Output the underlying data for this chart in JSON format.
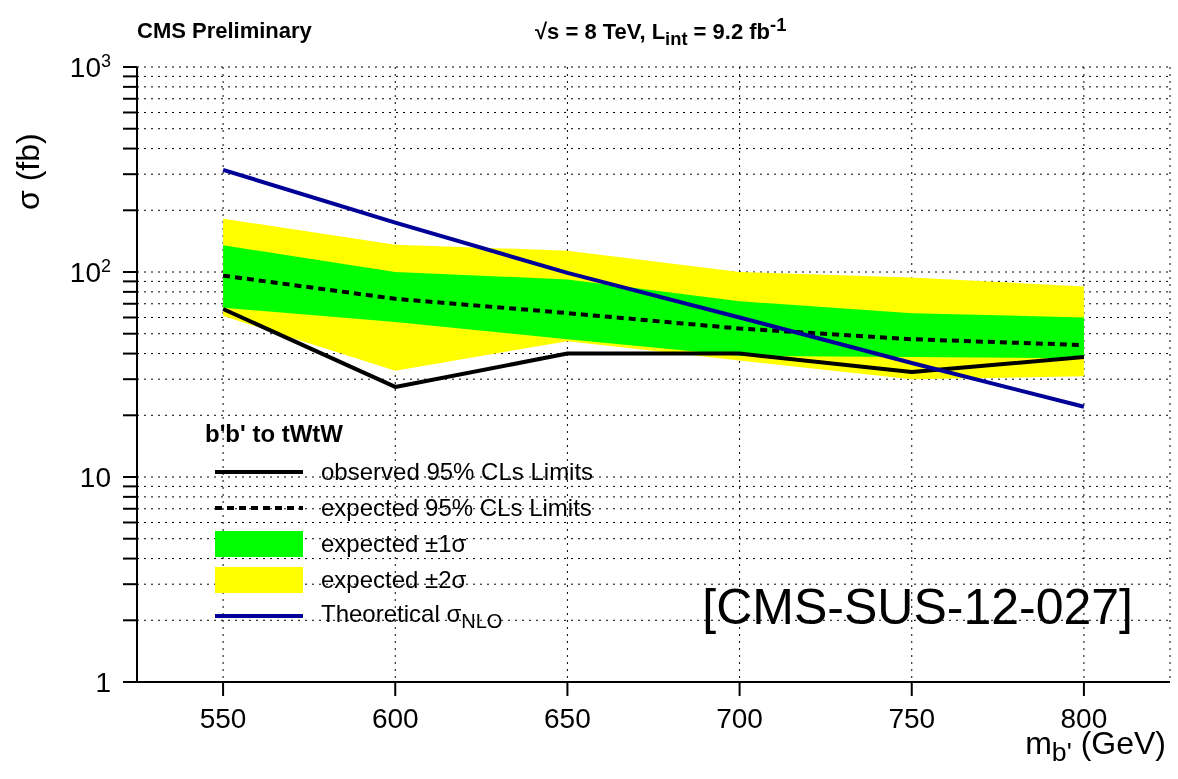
{
  "chart_data": {
    "type": "line",
    "annotations": [
      "CMS Preliminary",
      "√s = 8 TeV, L$_{int}$ = 9.2 fb$^{-1}$",
      "[CMS-SUS-12-027]"
    ],
    "xlabel": "m$_{b'}$ (GeV)",
    "ylabel": "σ (fb)",
    "legend_title": "b'b' to tWtW",
    "x": [
      550,
      600,
      650,
      700,
      750,
      800
    ],
    "series": [
      {
        "name": "observed 95% CLs Limits",
        "color": "#000000",
        "line_style": "solid",
        "values": [
          66,
          27.5,
          40,
          40,
          32.5,
          38.5
        ]
      },
      {
        "name": "expected 95% CLs Limits",
        "color": "#000000",
        "line_style": "dashed",
        "values": [
          96,
          74,
          63,
          53,
          47,
          44
        ]
      },
      {
        "name": "expected ±1σ",
        "type": "area",
        "color": "#00ff00",
        "values": [
          null,
          null,
          null,
          null,
          null,
          null
        ],
        "lower": [
          67,
          57,
          47,
          39,
          38.5,
          38
        ],
        "upper": [
          135,
          100,
          92,
          72,
          63,
          60
        ]
      },
      {
        "name": "expected ±2σ",
        "type": "area",
        "color": "#ffff00",
        "values": [
          null,
          null,
          null,
          null,
          null,
          null
        ],
        "lower": [
          61,
          33,
          46,
          37,
          30,
          31
        ],
        "upper": [
          182,
          136,
          127,
          100,
          94,
          85
        ]
      },
      {
        "name": "Theoretical σ$_{NLO}$",
        "color": "#000099",
        "line_style": "solid",
        "values": [
          315,
          174,
          99,
          60,
          36,
          22
        ]
      }
    ],
    "log": "y",
    "grid": true,
    "legend": "bottom left",
    "marker": "none",
    "xlim": [
      525,
      825
    ],
    "xticks": [
      550,
      600,
      650,
      700,
      750,
      800
    ],
    "ylim": [
      1,
      1000
    ],
    "yticks": [
      1,
      {
        "value": 2,
        "label": null
      },
      {
        "value": 3,
        "label": null
      },
      {
        "value": 4,
        "label": null
      },
      {
        "value": 5,
        "label": null
      },
      {
        "value": 6,
        "label": null
      },
      {
        "value": 7,
        "label": null
      },
      {
        "value": 8,
        "label": null
      },
      {
        "value": 9,
        "label": null
      },
      10,
      {
        "value": 20,
        "label": null
      },
      {
        "value": 30,
        "label": null
      },
      {
        "value": 40,
        "label": null
      },
      {
        "value": 50,
        "label": null
      },
      {
        "value": 60,
        "label": null
      },
      {
        "value": 70,
        "label": null
      },
      {
        "value": 80,
        "label": null
      },
      {
        "value": 90,
        "label": null
      },
      {
        "value": 100,
        "label": "10$^{2}$"
      },
      {
        "value": 200,
        "label": null
      },
      {
        "value": 300,
        "label": null
      },
      {
        "value": 400,
        "label": null
      },
      {
        "value": 500,
        "label": null
      },
      {
        "value": 600,
        "label": null
      },
      {
        "value": 700,
        "label": null
      },
      {
        "value": 800,
        "label": null
      },
      {
        "value": 900,
        "label": null
      },
      {
        "value": 1000,
        "label": "10$^{3}$"
      }
    ]
  }
}
